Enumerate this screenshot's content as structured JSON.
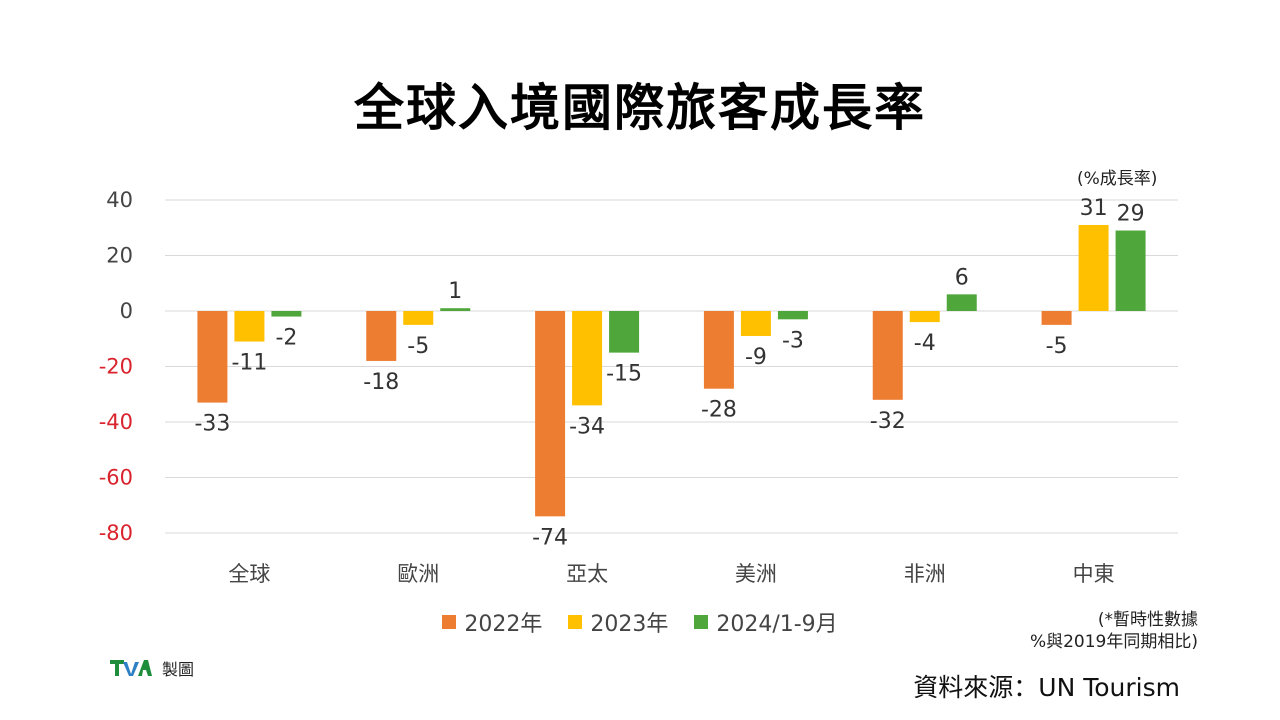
{
  "title": "全球入境國際旅客成長率",
  "unit_label": "(%成長率)",
  "note_line1": "(*暫時性數據",
  "note_line2": "%與2019年同期相比)",
  "source": "資料來源：UN Tourism",
  "logo": {
    "mark": "TVA",
    "text": "製圖"
  },
  "colors": {
    "s2022": "#ED7D31",
    "s2023": "#FFC000",
    "s2024": "#4FA63A",
    "negative_tick": "#D9232D"
  },
  "chart_data": {
    "type": "bar",
    "title": "全球入境國際旅客成長率",
    "categories": [
      "全球",
      "歐洲",
      "亞太",
      "美洲",
      "非洲",
      "中東"
    ],
    "ylim": [
      -80,
      40
    ],
    "yticks": [
      40,
      20,
      0,
      -20,
      -40,
      -60,
      -80
    ],
    "grid": true,
    "legend_position": "bottom",
    "series": [
      {
        "name": "2022年",
        "values": [
          -33,
          -18,
          -74,
          -28,
          -32,
          -5
        ]
      },
      {
        "name": "2023年",
        "values": [
          -11,
          -5,
          -34,
          -9,
          -4,
          31
        ]
      },
      {
        "name": "2024/1-9月",
        "values": [
          -2,
          1,
          -15,
          -3,
          6,
          29
        ]
      }
    ]
  }
}
